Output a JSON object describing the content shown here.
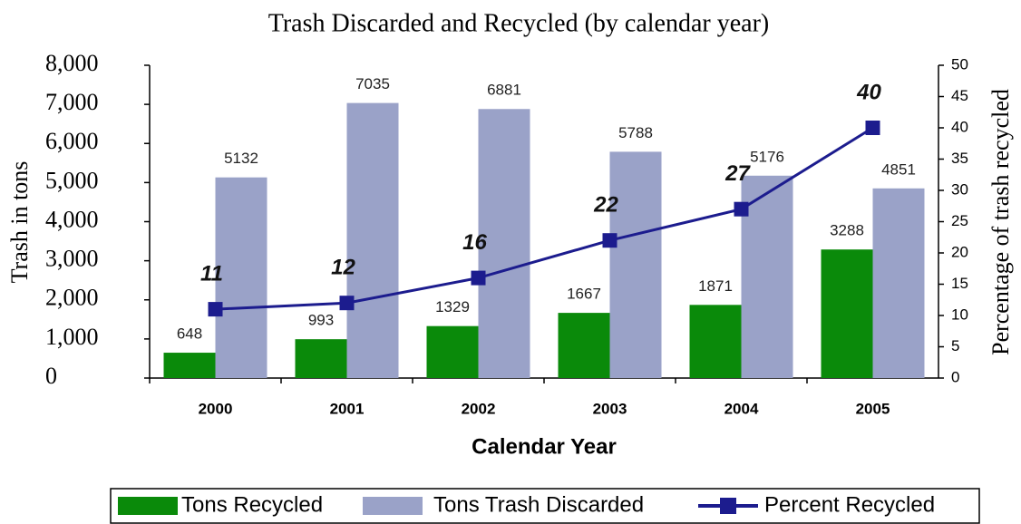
{
  "chart_data": {
    "type": "bar",
    "title": "Trash Discarded and Recycled (by calendar year)",
    "xlabel": "Calendar Year",
    "ylabel": "Trash in tons",
    "y2label": "Percentage of trash recycled",
    "categories": [
      "2000",
      "2001",
      "2002",
      "2003",
      "2004",
      "2005"
    ],
    "series": [
      {
        "name": "Tons Recycled",
        "color": "#0a8a0a",
        "values": [
          648,
          993,
          1329,
          1667,
          1871,
          3288
        ]
      },
      {
        "name": "Tons Trash Discarded",
        "color": "#9aa2c8",
        "values": [
          5132,
          7035,
          6881,
          5788,
          5176,
          4851
        ]
      },
      {
        "name": "Percent Recycled",
        "type": "line",
        "axis": "y2",
        "color": "#1c1c8e",
        "values": [
          11,
          12,
          16,
          22,
          27,
          40
        ]
      }
    ],
    "ylim": [
      0,
      8000
    ],
    "yticks": [
      0,
      {
        "value": 1000,
        "label": "1,000"
      },
      {
        "value": 2000,
        "label": "2,000"
      },
      {
        "value": 3000,
        "label": "3,000"
      },
      {
        "value": 4000,
        "label": "4,000"
      },
      {
        "value": 5000,
        "label": "5,000"
      },
      {
        "value": 6000,
        "label": "6,000"
      },
      {
        "value": 7000,
        "label": "7,000"
      },
      {
        "value": 8000,
        "label": "8,000"
      }
    ],
    "y2lim": [
      0,
      50
    ],
    "y2ticks": [
      0,
      5,
      10,
      15,
      20,
      25,
      30,
      35,
      40,
      45,
      50
    ],
    "grid": false,
    "legend": "bottom"
  }
}
